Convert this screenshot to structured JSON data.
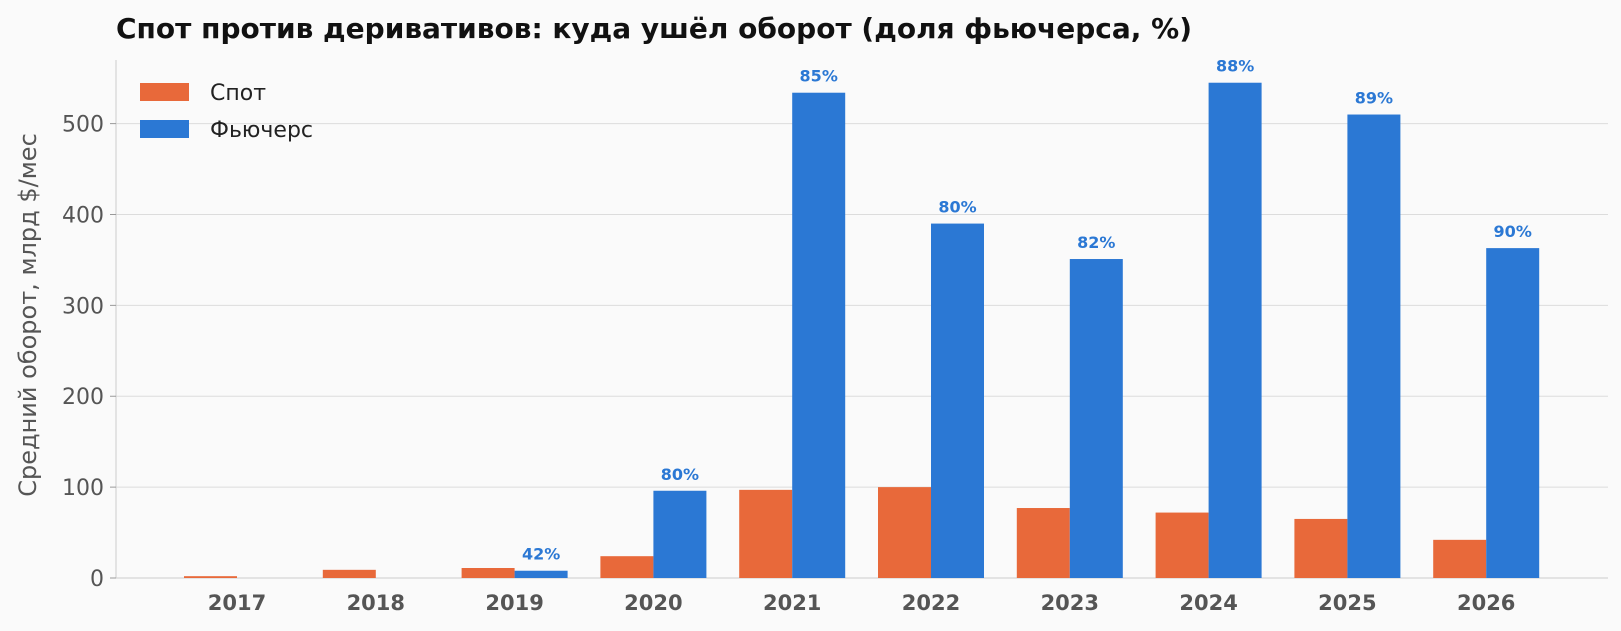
{
  "chart_data": {
    "type": "bar",
    "title": "Спот против деривативов: куда ушёл оборот (доля фьючерса, %)",
    "xlabel": "",
    "ylabel": "Средний оборот, млрд $/мес",
    "categories": [
      "2017",
      "2018",
      "2019",
      "2020",
      "2021",
      "2022",
      "2023",
      "2024",
      "2025",
      "2026"
    ],
    "ylim": [
      0,
      570
    ],
    "yticks": [
      0,
      100,
      200,
      300,
      400,
      500
    ],
    "ytick_labels": [
      "0",
      "100",
      "200",
      "300",
      "400",
      "500"
    ],
    "grid": true,
    "legend_position": "top-left",
    "series": [
      {
        "name": "Спот",
        "color": "#e8693a",
        "values": [
          2,
          9,
          11,
          24,
          97,
          100,
          77,
          72,
          65,
          42
        ]
      },
      {
        "name": "Фьючерс",
        "color": "#2b78d4",
        "values": [
          0,
          0,
          8,
          96,
          534,
          390,
          351,
          545,
          510,
          363
        ]
      }
    ],
    "annotations": [
      "",
      "",
      "42%",
      "80%",
      "85%",
      "80%",
      "82%",
      "88%",
      "89%",
      "90%"
    ],
    "annotation_color": "#2b78d4"
  }
}
